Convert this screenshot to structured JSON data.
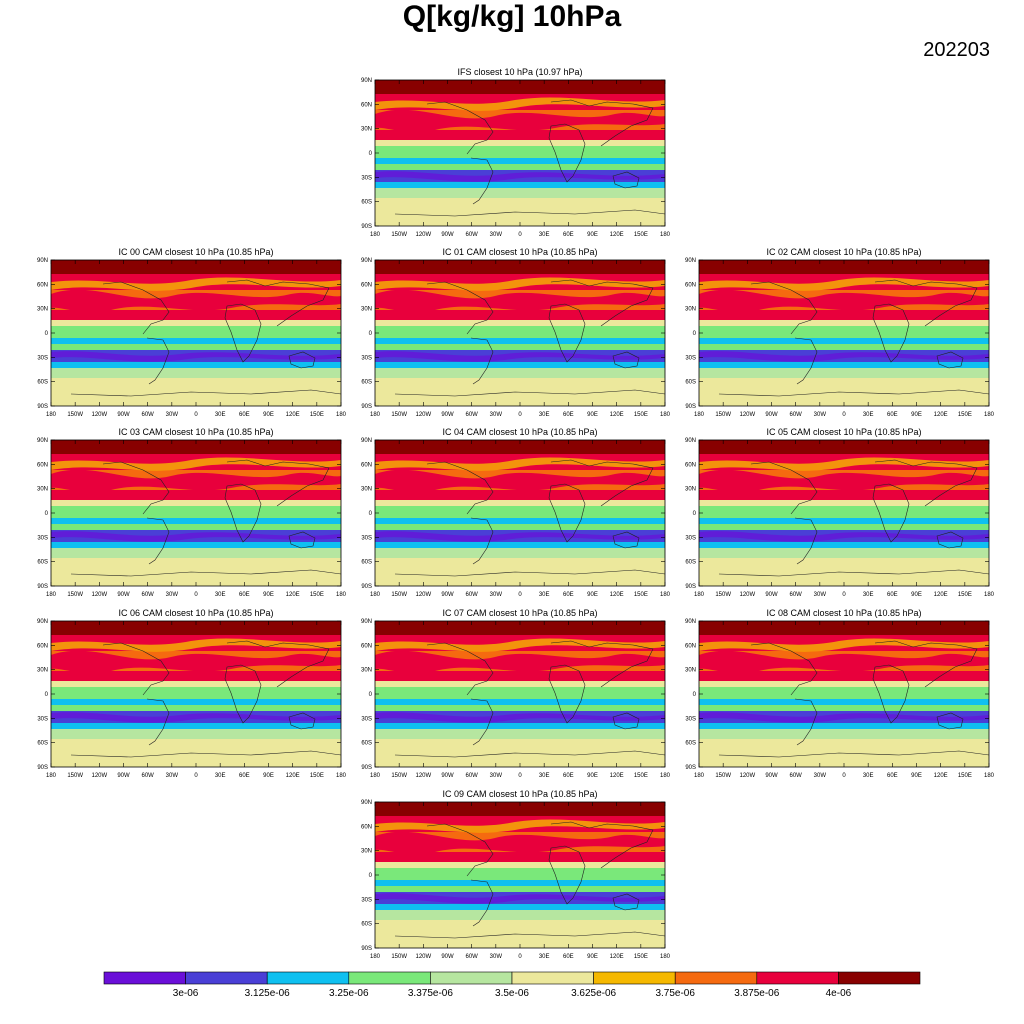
{
  "title": "Q[kg/kg] 10hPa",
  "date": "202203",
  "panels": [
    {
      "id": "ifs",
      "title": "IFS closest 10 hPa (10.97 hPa)"
    },
    {
      "id": "ic00",
      "title": "IC 00 CAM closest 10 hPa (10.85 hPa)"
    },
    {
      "id": "ic01",
      "title": "IC 01 CAM closest 10 hPa (10.85 hPa)"
    },
    {
      "id": "ic02",
      "title": "IC 02 CAM closest 10 hPa (10.85 hPa)"
    },
    {
      "id": "ic03",
      "title": "IC 03 CAM closest 10 hPa (10.85 hPa)"
    },
    {
      "id": "ic04",
      "title": "IC 04 CAM closest 10 hPa (10.85 hPa)"
    },
    {
      "id": "ic05",
      "title": "IC 05 CAM closest 10 hPa (10.85 hPa)"
    },
    {
      "id": "ic06",
      "title": "IC 06 CAM closest 10 hPa (10.85 hPa)"
    },
    {
      "id": "ic07",
      "title": "IC 07 CAM closest 10 hPa (10.85 hPa)"
    },
    {
      "id": "ic08",
      "title": "IC 08 CAM closest 10 hPa (10.85 hPa)"
    },
    {
      "id": "ic09",
      "title": "IC 09 CAM closest 10 hPa (10.85 hPa)"
    }
  ],
  "lat_ticks": [
    "90N",
    "60N",
    "30N",
    "0",
    "30S",
    "60S",
    "90S"
  ],
  "lon_ticks": [
    "180",
    "150W",
    "120W",
    "90W",
    "60W",
    "30W",
    "0",
    "30E",
    "60E",
    "90E",
    "120E",
    "150E",
    "180"
  ],
  "colorbar": {
    "colors": [
      "#6a0fd8",
      "#4a3fd6",
      "#0fc0f0",
      "#7ae87a",
      "#b6e6a0",
      "#ece89c",
      "#f5b800",
      "#f56a10",
      "#e8003c",
      "#880000"
    ],
    "labels": [
      "3e-06",
      "3.125e-06",
      "3.25e-06",
      "3.375e-06",
      "3.5e-06",
      "3.625e-06",
      "3.75e-06",
      "3.875e-06",
      "4e-06"
    ]
  }
}
